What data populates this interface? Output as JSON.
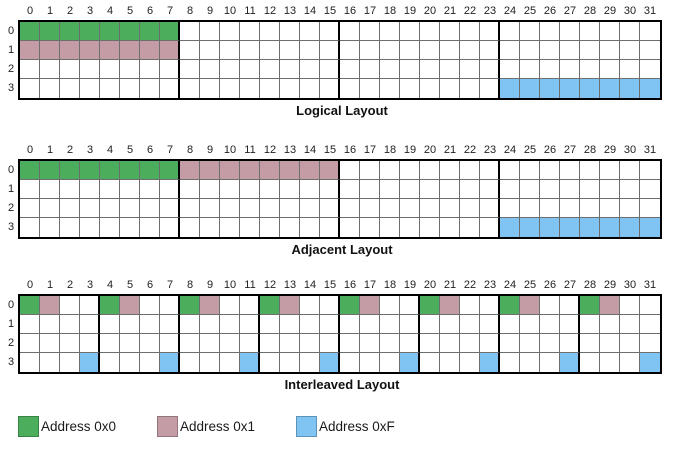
{
  "colors": {
    "green": "#4cae5c",
    "pink": "#c49ca6",
    "blue": "#7fc4f2",
    "grid_line": "#6e6e6e",
    "grid_border": "#000000"
  },
  "col_headers": [
    "0",
    "1",
    "2",
    "3",
    "4",
    "5",
    "6",
    "7",
    "8",
    "9",
    "10",
    "11",
    "12",
    "13",
    "14",
    "15",
    "16",
    "17",
    "18",
    "19",
    "20",
    "21",
    "22",
    "23",
    "24",
    "25",
    "26",
    "27",
    "28",
    "29",
    "30",
    "31"
  ],
  "row_headers": [
    "0",
    "1",
    "2",
    "3"
  ],
  "grids": [
    {
      "id": "logical",
      "caption": "Logical Layout",
      "group_size": 8,
      "fills": [
        {
          "color": "green",
          "row": 0,
          "cols": [
            0,
            1,
            2,
            3,
            4,
            5,
            6,
            7
          ]
        },
        {
          "color": "pink",
          "row": 1,
          "cols": [
            0,
            1,
            2,
            3,
            4,
            5,
            6,
            7
          ]
        },
        {
          "color": "blue",
          "row": 3,
          "cols": [
            24,
            25,
            26,
            27,
            28,
            29,
            30,
            31
          ]
        }
      ]
    },
    {
      "id": "adjacent",
      "caption": "Adjacent Layout",
      "group_size": 8,
      "fills": [
        {
          "color": "green",
          "row": 0,
          "cols": [
            0,
            1,
            2,
            3,
            4,
            5,
            6,
            7
          ]
        },
        {
          "color": "pink",
          "row": 0,
          "cols": [
            8,
            9,
            10,
            11,
            12,
            13,
            14,
            15
          ]
        },
        {
          "color": "blue",
          "row": 3,
          "cols": [
            24,
            25,
            26,
            27,
            28,
            29,
            30,
            31
          ]
        }
      ]
    },
    {
      "id": "interleaved",
      "caption": "Interleaved Layout",
      "group_size": 4,
      "fills": [
        {
          "color": "green",
          "row": 0,
          "cols": [
            0,
            4,
            8,
            12,
            16,
            20,
            24,
            28
          ]
        },
        {
          "color": "pink",
          "row": 0,
          "cols": [
            1,
            5,
            9,
            13,
            17,
            21,
            25,
            29
          ]
        },
        {
          "color": "blue",
          "row": 3,
          "cols": [
            3,
            7,
            11,
            15,
            19,
            23,
            27,
            31
          ]
        }
      ]
    }
  ],
  "legend": [
    {
      "label": "Address 0x0",
      "color": "green"
    },
    {
      "label": "Address 0x1",
      "color": "pink"
    },
    {
      "label": "Address 0xF",
      "color": "blue"
    }
  ]
}
